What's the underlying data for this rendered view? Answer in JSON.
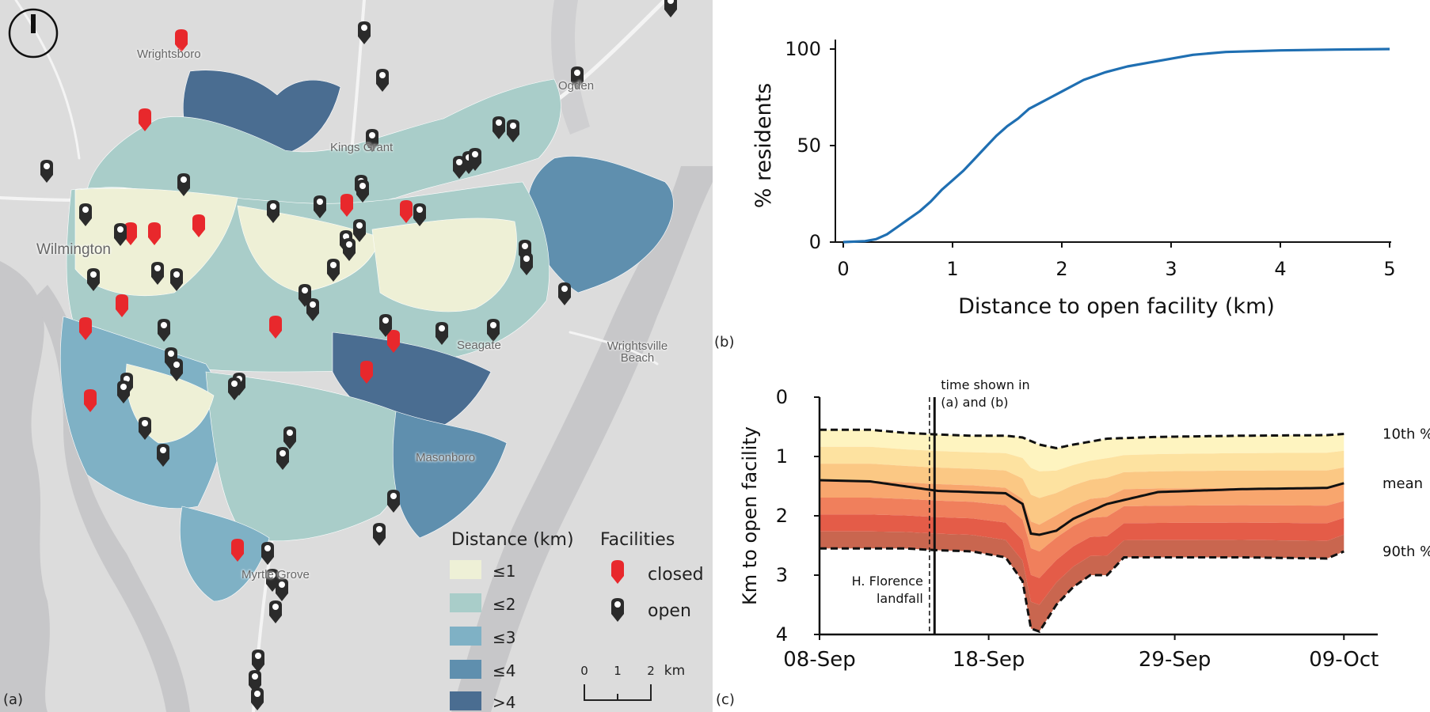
{
  "panel_labels": {
    "a": "(a)",
    "b": "(b)",
    "c": "(c)"
  },
  "map": {
    "places": [
      "Wrightsboro",
      "Ogden",
      "Kings Grant",
      "Wilmington",
      "Seagate",
      "Wrightsville Beach",
      "Masonboro",
      "Myrtle Grove"
    ],
    "legend": {
      "distance_title": "Distance (km)",
      "classes": [
        {
          "label": "≤1",
          "color": "#eef0d6"
        },
        {
          "label": "≤2",
          "color": "#a9cdc9"
        },
        {
          "label": "≤3",
          "color": "#7fb1c5"
        },
        {
          "label": "≤4",
          "color": "#5f8fae"
        },
        {
          "label": ">4",
          "color": "#4a6d91"
        }
      ],
      "facilities_title": "Facilities",
      "closed_label": "closed",
      "open_label": "open",
      "closed_color": "#e8282c",
      "open_color": "#2b2b2b"
    },
    "scale_bar": {
      "ticks": [
        "0",
        "1",
        "2"
      ],
      "unit": "km"
    },
    "north_arrow_icon": "north-arrow-icon"
  },
  "chart_data": [
    {
      "type": "line",
      "id": "b",
      "xlabel": "Distance to open facility (km)",
      "ylabel": "% residents",
      "xlim": [
        0,
        5
      ],
      "ylim": [
        0,
        100
      ],
      "xticks": [
        "0",
        "1",
        "2",
        "3",
        "4",
        "5"
      ],
      "yticks": [
        "0",
        "50",
        "100"
      ],
      "line_color": "#1f6fb2",
      "series": [
        {
          "x": [
            0,
            0.2,
            0.3,
            0.4,
            0.5,
            0.6,
            0.7,
            0.8,
            0.9,
            1.0,
            1.1,
            1.2,
            1.3,
            1.4,
            1.5,
            1.6,
            1.7,
            1.8,
            1.9,
            2.0,
            2.2,
            2.4,
            2.6,
            2.8,
            3.0,
            3.2,
            3.5,
            4.0,
            4.5,
            5.0
          ],
          "y": [
            0,
            0.5,
            1.5,
            4,
            8,
            12,
            16,
            21,
            27,
            32,
            37,
            43,
            49,
            55,
            60,
            64,
            69,
            72,
            75,
            78,
            84,
            88,
            91,
            93,
            95,
            97,
            98.5,
            99.3,
            99.7,
            100
          ]
        }
      ]
    },
    {
      "type": "area",
      "id": "c",
      "ylabel": "Km to open facility",
      "ylim": [
        0,
        4
      ],
      "yticks": [
        "0",
        "1",
        "2",
        "3",
        "4"
      ],
      "xticks": [
        "08-Sep",
        "18-Sep",
        "29-Sep",
        "09-Oct"
      ],
      "band_colors": [
        "#fef4c0",
        "#fde2a0",
        "#fbc884",
        "#f8a66e",
        "#f07f5c",
        "#e45c48",
        "#c9664f"
      ],
      "series": [
        {
          "name": "10th %",
          "style": "dashed",
          "days": [
            0,
            3,
            5,
            7,
            9,
            11,
            12,
            13,
            14,
            15,
            17,
            20,
            25,
            30,
            31
          ],
          "values": [
            0.55,
            0.55,
            0.6,
            0.63,
            0.65,
            0.65,
            0.68,
            0.8,
            0.86,
            0.8,
            0.7,
            0.67,
            0.65,
            0.64,
            0.62
          ]
        },
        {
          "name": "mean",
          "style": "solid",
          "days": [
            0,
            3,
            5,
            7,
            9,
            11,
            12,
            12.5,
            13,
            14,
            15,
            17,
            20,
            25,
            30,
            31
          ],
          "values": [
            1.4,
            1.42,
            1.5,
            1.58,
            1.6,
            1.62,
            1.8,
            2.3,
            2.32,
            2.25,
            2.05,
            1.8,
            1.6,
            1.55,
            1.53,
            1.45
          ]
        },
        {
          "name": "90th %",
          "style": "dashed",
          "days": [
            0,
            3,
            5,
            7,
            9,
            11,
            12,
            12.5,
            13,
            14,
            15,
            16,
            17,
            18,
            20,
            25,
            30,
            31
          ],
          "values": [
            2.55,
            2.55,
            2.55,
            2.58,
            2.6,
            2.7,
            3.1,
            3.9,
            3.95,
            3.5,
            3.2,
            3.0,
            3.0,
            2.7,
            2.7,
            2.7,
            2.72,
            2.6
          ]
        }
      ],
      "annotations": {
        "landfall_text": [
          "H. Florence",
          "landfall"
        ],
        "landfall_day": 6.5,
        "time_shown_text": [
          "time shown in",
          "(a) and (b)"
        ],
        "time_shown_day": 6.8
      }
    }
  ]
}
